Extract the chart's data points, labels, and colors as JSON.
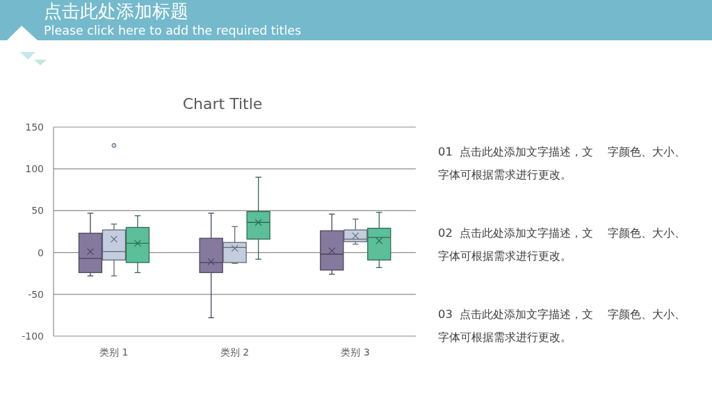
{
  "chart_data": {
    "type": "box",
    "title": "Chart Title",
    "categories": [
      "类别 1",
      "类别 2",
      "类别 3"
    ],
    "series": [
      {
        "color": "#857a9e",
        "boxes": [
          {
            "low": -28,
            "q1": -24,
            "median": -7,
            "q3": 23,
            "high": 47,
            "mean": 1
          },
          {
            "low": -78,
            "q1": -24,
            "median": -12,
            "q3": 17,
            "high": 47,
            "mean": -11
          },
          {
            "low": -26,
            "q1": -21,
            "median": -2,
            "q3": 26,
            "high": 46,
            "mean": 2
          }
        ]
      },
      {
        "color": "#c4cddf",
        "boxes": [
          {
            "low": -28,
            "q1": -9,
            "median": 1,
            "q3": 27,
            "high": 34,
            "mean": 16,
            "outliers": [
              128
            ]
          },
          {
            "low": -13,
            "q1": -12,
            "median": 6,
            "q3": 12,
            "high": 31,
            "mean": 5
          },
          {
            "low": 10,
            "q1": 13,
            "median": 16,
            "q3": 27,
            "high": 40,
            "mean": 20
          }
        ]
      },
      {
        "color": "#5bbf9a",
        "boxes": [
          {
            "low": -24,
            "q1": -12,
            "median": 11,
            "q3": 30,
            "high": 44,
            "mean": 11
          },
          {
            "low": -8,
            "q1": 16,
            "median": 36,
            "q3": 49,
            "high": 90,
            "mean": 36
          },
          {
            "low": -18,
            "q1": -9,
            "median": 18,
            "q3": 29,
            "high": 48,
            "mean": 14
          }
        ]
      }
    ],
    "ylim": [
      -100,
      150
    ],
    "yticks": [
      -100,
      -50,
      0,
      50,
      100,
      150
    ],
    "grid": "y",
    "annotations": [
      "点击此处添加标题",
      "Please click here to add the required titles",
      "01  点击此处添加文字描述，文    字颜色、大小、字体可根据需求进行更改。",
      "02  点击此处添加文字描述，文    字颜色、大小、字体可根据需求进行更改。",
      "03  点击此处添加文字描述，文    字颜色、大小、字体可根据需求进行更改。"
    ]
  }
}
